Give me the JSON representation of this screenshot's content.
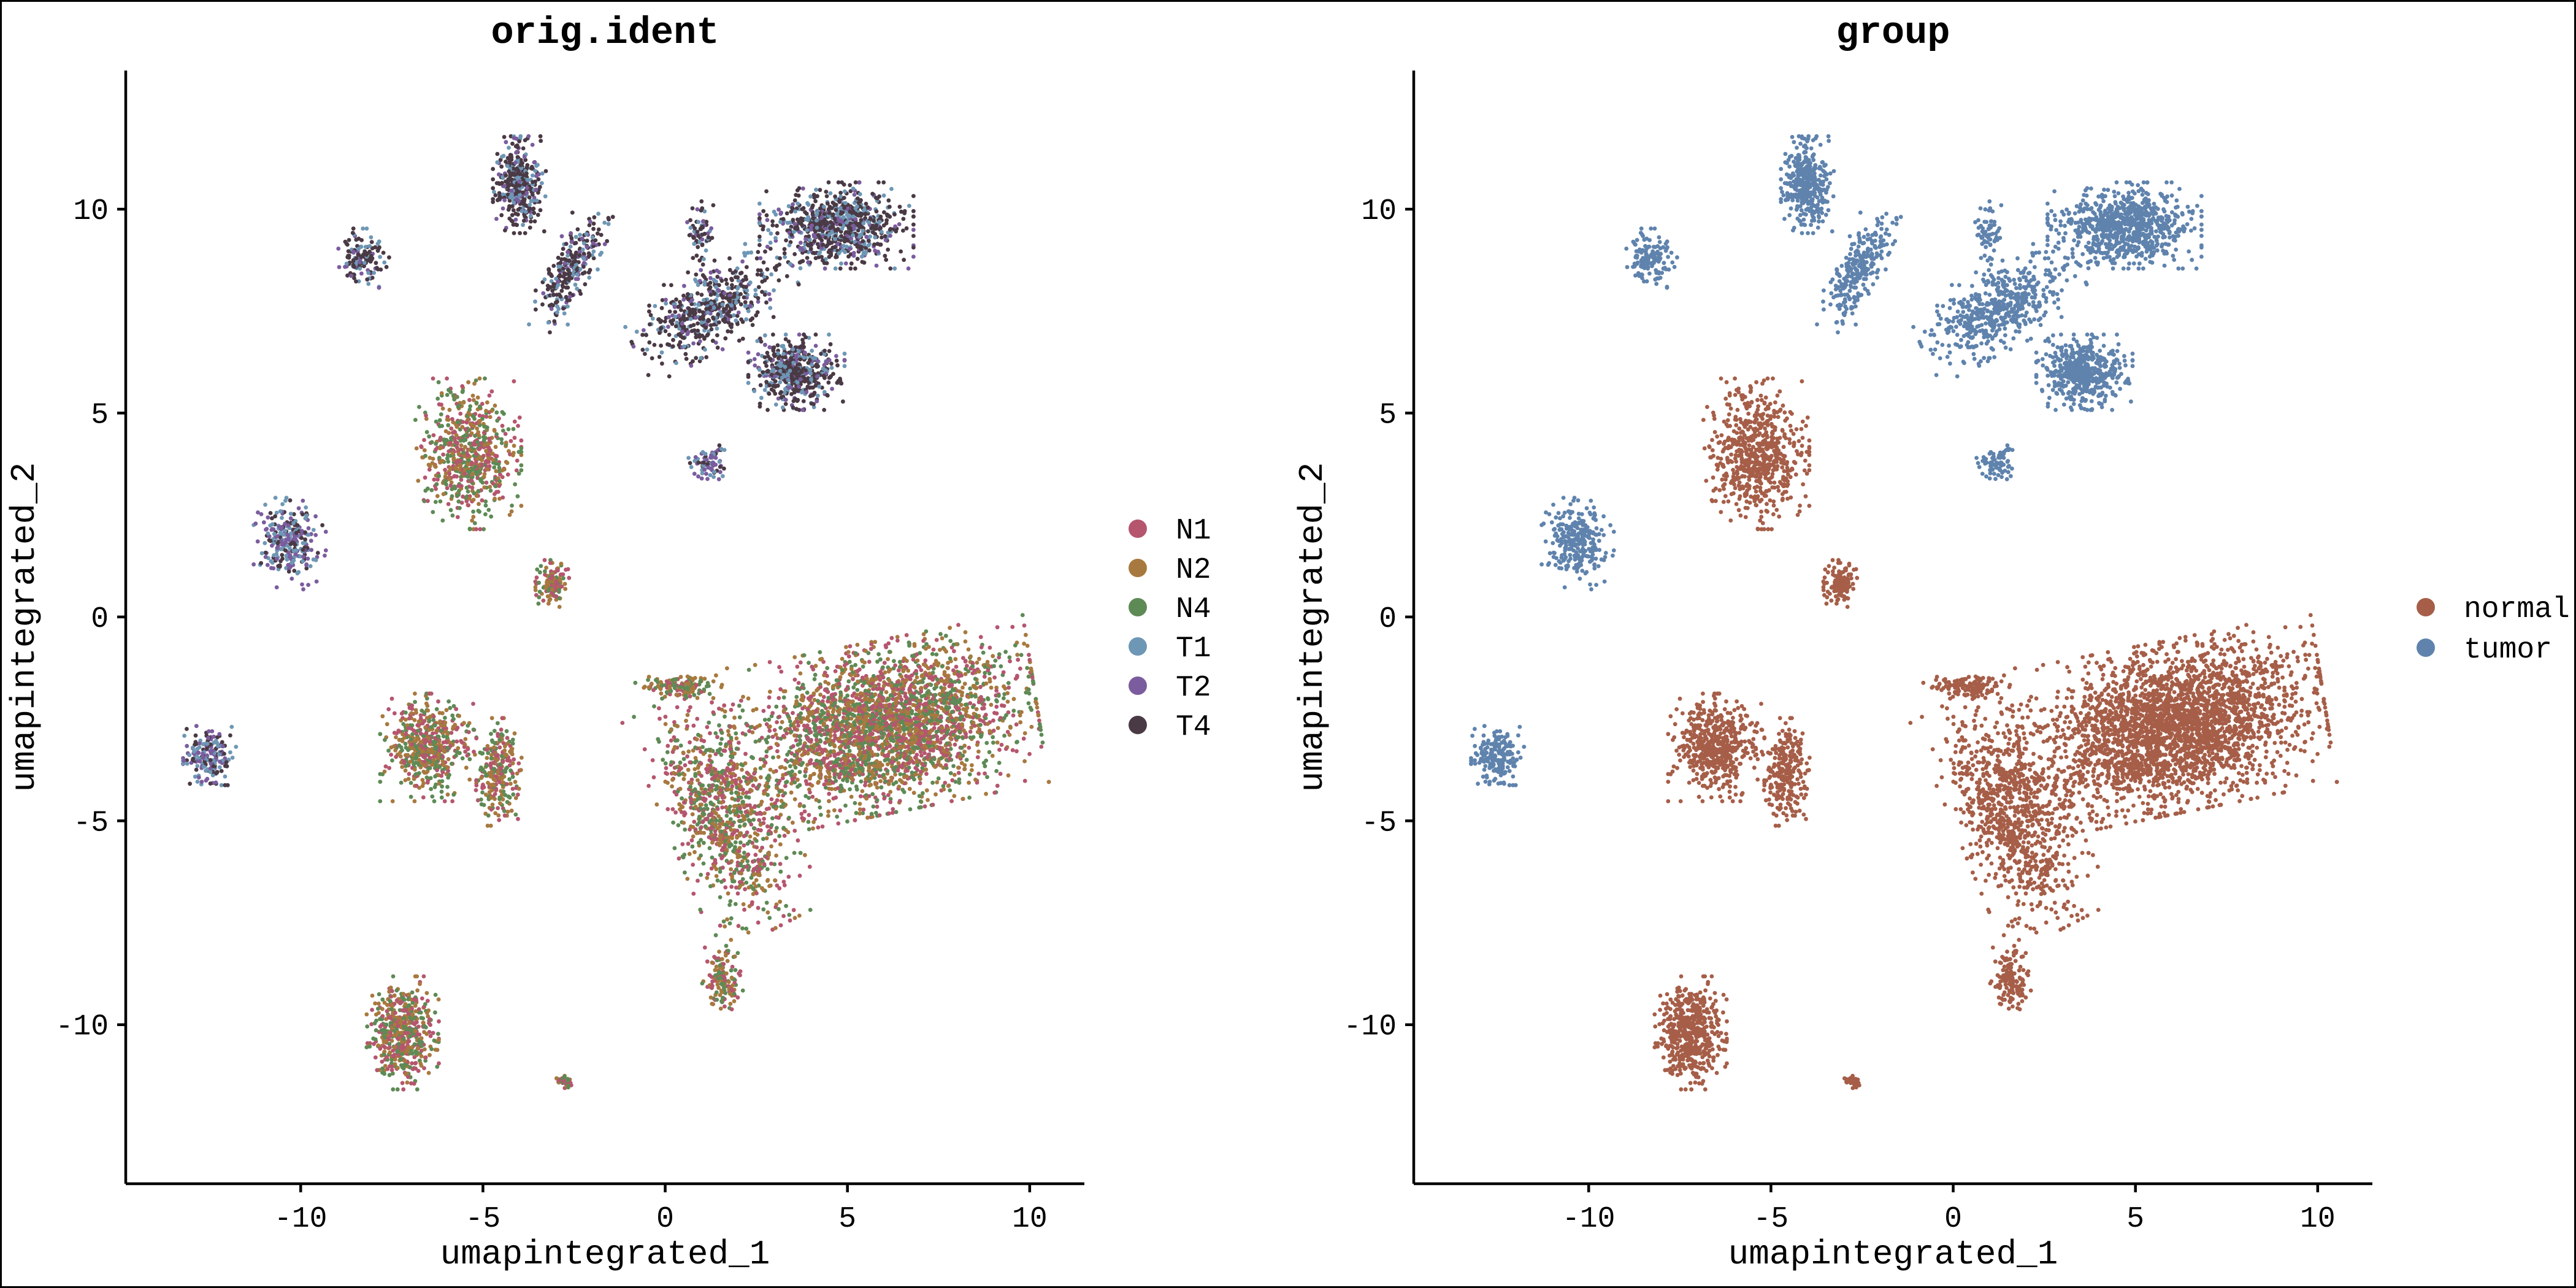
{
  "chart_data": [
    {
      "type": "scatter",
      "title": "orig.ident",
      "xlabel": "umapintegrated_1",
      "ylabel": "umapintegrated_2",
      "xlim": [
        -14.8,
        11.5
      ],
      "ylim": [
        -13.9,
        13.4
      ],
      "xticks": [
        "-10",
        "-5",
        "0",
        "5",
        "10"
      ],
      "yticks": [
        "-10",
        "-5",
        "0",
        "5",
        "10"
      ],
      "grid": false,
      "legend_position": "right",
      "series": [
        {
          "name": "N1",
          "color": "#B5566E"
        },
        {
          "name": "N2",
          "color": "#A8793F"
        },
        {
          "name": "N4",
          "color": "#5E8A55"
        },
        {
          "name": "T1",
          "color": "#6E97B5"
        },
        {
          "name": "T2",
          "color": "#7B5C9E"
        },
        {
          "name": "T4",
          "color": "#4A3A45"
        }
      ],
      "clusters": [
        {
          "x": 6.0,
          "y": -2.7,
          "sx": 3.2,
          "sy": 1.6,
          "rot": 10,
          "group": "normal",
          "weight": 22
        },
        {
          "x": 1.6,
          "y": -4.8,
          "sx": 1.2,
          "sy": 2.4,
          "rot": 25,
          "group": "normal",
          "weight": 7
        },
        {
          "x": 1.6,
          "y": -8.9,
          "sx": 0.45,
          "sy": 0.6,
          "rot": 0,
          "group": "normal",
          "weight": 1
        },
        {
          "x": 0.5,
          "y": -1.7,
          "sx": 1.0,
          "sy": 0.25,
          "rot": 0,
          "group": "normal",
          "weight": 1
        },
        {
          "x": -5.4,
          "y": 4.0,
          "sx": 1.1,
          "sy": 1.4,
          "rot": 0,
          "group": "normal",
          "weight": 5
        },
        {
          "x": -3.1,
          "y": 0.8,
          "sx": 0.35,
          "sy": 0.45,
          "rot": 0,
          "group": "normal",
          "weight": 1
        },
        {
          "x": -6.5,
          "y": -3.2,
          "sx": 1.0,
          "sy": 1.0,
          "rot": 0,
          "group": "normal",
          "weight": 4
        },
        {
          "x": -4.6,
          "y": -3.8,
          "sx": 0.5,
          "sy": 1.0,
          "rot": 0,
          "group": "normal",
          "weight": 2
        },
        {
          "x": -7.2,
          "y": -10.2,
          "sx": 0.75,
          "sy": 1.05,
          "rot": 0,
          "group": "normal",
          "weight": 4
        },
        {
          "x": -2.8,
          "y": -11.4,
          "sx": 0.2,
          "sy": 0.15,
          "rot": 0,
          "group": "normal",
          "weight": 0.3
        },
        {
          "x": 4.7,
          "y": 9.6,
          "sx": 1.6,
          "sy": 0.8,
          "rot": 0,
          "group": "tumor",
          "weight": 6
        },
        {
          "x": 3.6,
          "y": 6.0,
          "sx": 1.0,
          "sy": 0.7,
          "rot": 0,
          "group": "tumor",
          "weight": 4
        },
        {
          "x": 1.3,
          "y": 7.6,
          "sx": 1.8,
          "sy": 0.8,
          "rot": 25,
          "group": "tumor",
          "weight": 4
        },
        {
          "x": -4.0,
          "y": 10.6,
          "sx": 0.55,
          "sy": 0.9,
          "rot": 0,
          "group": "tumor",
          "weight": 3
        },
        {
          "x": -2.6,
          "y": 8.5,
          "sx": 0.5,
          "sy": 1.3,
          "rot": -30,
          "group": "tumor",
          "weight": 2
        },
        {
          "x": -8.3,
          "y": 8.8,
          "sx": 0.55,
          "sy": 0.55,
          "rot": 0,
          "group": "tumor",
          "weight": 1
        },
        {
          "x": 1.0,
          "y": 9.4,
          "sx": 0.3,
          "sy": 0.6,
          "rot": 0,
          "group": "tumor",
          "weight": 0.5
        },
        {
          "x": 1.2,
          "y": 3.8,
          "sx": 0.45,
          "sy": 0.35,
          "rot": 0,
          "group": "tumor",
          "weight": 0.6
        },
        {
          "x": -10.3,
          "y": 1.8,
          "sx": 0.75,
          "sy": 0.85,
          "rot": 0,
          "group": "tumor",
          "weight": 2
        },
        {
          "x": -12.5,
          "y": -3.4,
          "sx": 0.55,
          "sy": 0.55,
          "rot": 0,
          "group": "tumor",
          "weight": 1.5
        }
      ]
    },
    {
      "type": "scatter",
      "title": "group",
      "xlabel": "umapintegrated_1",
      "ylabel": "umapintegrated_2",
      "xlim": [
        -14.8,
        11.5
      ],
      "ylim": [
        -13.9,
        13.4
      ],
      "xticks": [
        "-10",
        "-5",
        "0",
        "5",
        "10"
      ],
      "yticks": [
        "-10",
        "-5",
        "0",
        "5",
        "10"
      ],
      "grid": false,
      "legend_position": "right",
      "series": [
        {
          "name": "normal",
          "color": "#A65E48"
        },
        {
          "name": "tumor",
          "color": "#5F83AD"
        }
      ],
      "clusters": "same cells as orig.ident panel, colored by group"
    }
  ]
}
